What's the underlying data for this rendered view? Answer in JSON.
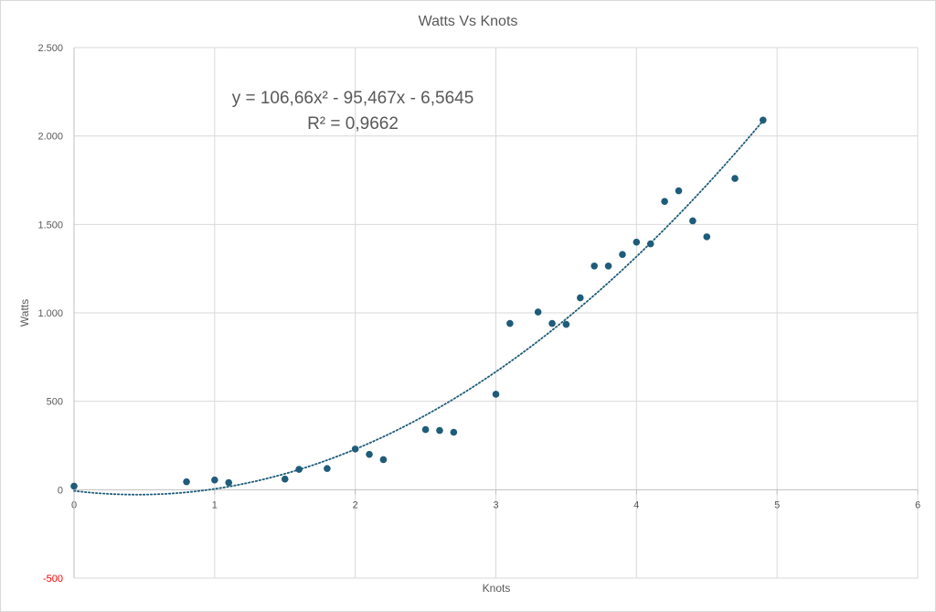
{
  "chart_data": {
    "type": "scatter",
    "title": "Watts Vs Knots",
    "xlabel": "Knots",
    "ylabel": "Watts",
    "xlim": [
      0,
      6
    ],
    "ylim": [
      -500,
      2500
    ],
    "grid": true,
    "x_ticks": [
      0,
      1,
      2,
      3,
      4,
      5,
      6
    ],
    "x_tick_labels": [
      "0",
      "1",
      "2",
      "3",
      "4",
      "5",
      "6"
    ],
    "y_ticks": [
      -500,
      0,
      500,
      1000,
      1500,
      2000,
      2500
    ],
    "y_tick_labels": [
      "-500",
      "0",
      "500",
      "1.000",
      "1.500",
      "2.000",
      "2.500"
    ],
    "negative_tick_color": "#ff0000",
    "point_color": "#1f5c7a",
    "trendline_color": "#1f5c7a",
    "series": [
      {
        "x": [
          0,
          0.8,
          1.0,
          1.1,
          1.5,
          1.6,
          1.8,
          2.0,
          2.1,
          2.2,
          2.5,
          2.6,
          2.7,
          3.0,
          3.1,
          3.3,
          3.4,
          3.5,
          3.6,
          3.7,
          3.8,
          3.9,
          4.0,
          4.1,
          4.2,
          4.3,
          4.4,
          4.5,
          4.7,
          4.9
        ],
        "y": [
          20,
          45,
          55,
          40,
          60,
          115,
          120,
          230,
          200,
          170,
          340,
          335,
          325,
          540,
          940,
          1005,
          940,
          935,
          1085,
          1265,
          1265,
          1330,
          1400,
          1390,
          1630,
          1690,
          1520,
          1430,
          1760,
          2090
        ]
      }
    ],
    "trendline": {
      "type": "polynomial",
      "order": 2,
      "coefficients": [
        106.66,
        -95.467,
        -6.5645
      ],
      "x_range": [
        0,
        4.9
      ],
      "style": "dotted",
      "equation_text": "y = 106,66x² - 95,467x - 6,5645",
      "r2_text": "R² = 0,9662"
    }
  }
}
